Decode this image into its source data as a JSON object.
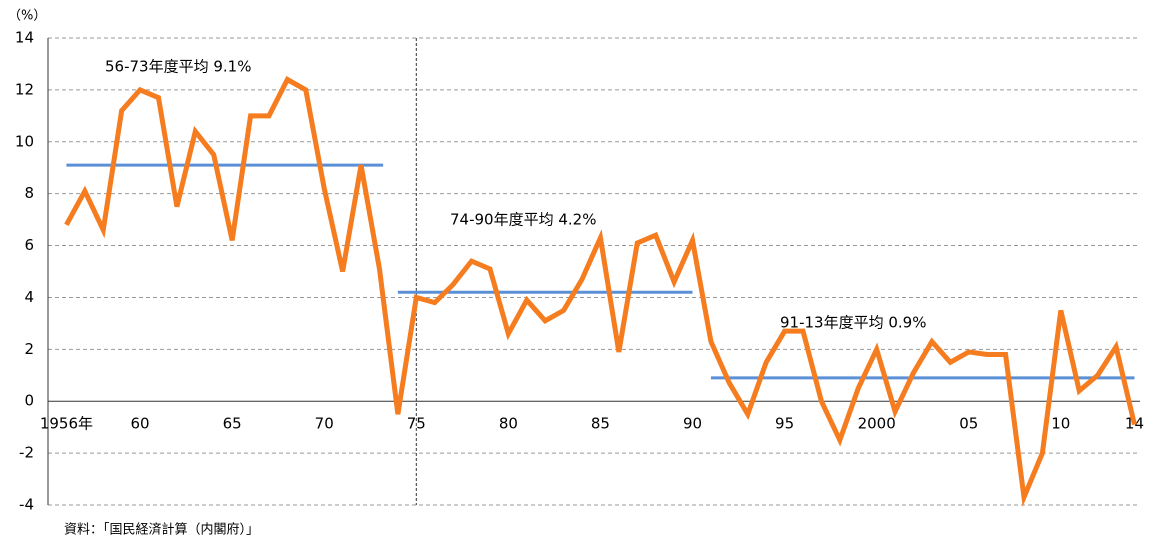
{
  "chart_data": {
    "type": "line",
    "y_unit": "（%）",
    "source": "資料：「国民経済計算（内閣府）」",
    "x": [
      1956,
      1957,
      1958,
      1959,
      1960,
      1961,
      1962,
      1963,
      1964,
      1965,
      1966,
      1967,
      1968,
      1969,
      1970,
      1971,
      1972,
      1973,
      1974,
      1975,
      1976,
      1977,
      1978,
      1979,
      1980,
      1981,
      1982,
      1983,
      1984,
      1985,
      1986,
      1987,
      1988,
      1989,
      1990,
      1991,
      1992,
      1993,
      1994,
      1995,
      1996,
      1997,
      1998,
      1999,
      2000,
      2001,
      2002,
      2003,
      2004,
      2005,
      2006,
      2007,
      2008,
      2009,
      2010,
      2011,
      2012,
      2013,
      2014
    ],
    "series": [
      {
        "color": "#f57c1f",
        "values": [
          6.8,
          8.1,
          6.6,
          11.2,
          12.0,
          11.7,
          7.5,
          10.4,
          9.5,
          6.2,
          11.0,
          11.0,
          12.4,
          12.0,
          8.2,
          5.0,
          9.1,
          5.1,
          -0.5,
          4.0,
          3.8,
          4.5,
          5.4,
          5.1,
          2.6,
          3.9,
          3.1,
          3.5,
          4.7,
          6.3,
          1.9,
          6.1,
          6.4,
          4.6,
          6.2,
          2.3,
          0.7,
          -0.5,
          1.5,
          2.7,
          2.7,
          0.0,
          -1.5,
          0.5,
          2.0,
          -0.4,
          1.1,
          2.3,
          1.5,
          1.9,
          1.8,
          1.8,
          -3.7,
          -2.0,
          3.5,
          0.4,
          1.0,
          2.1,
          -0.9
        ]
      }
    ],
    "averages": [
      {
        "label": "56-73年度平均 9.1%",
        "value": 9.1,
        "start": 1956,
        "end": 1973.2
      },
      {
        "label": "74-90年度平均 4.2%",
        "value": 4.2,
        "start": 1974,
        "end": 1990
      },
      {
        "label": "91-13年度平均 0.9%",
        "value": 0.9,
        "start": 1991,
        "end": 2014
      }
    ],
    "average_color": "#5b8fd6",
    "divider_x": 1975,
    "xlim": [
      1955,
      2014.3
    ],
    "xticks": [
      {
        "value": 1956,
        "label": "1956年"
      },
      {
        "value": 1960,
        "label": "60"
      },
      {
        "value": 1965,
        "label": "65"
      },
      {
        "value": 1970,
        "label": "70"
      },
      {
        "value": 1975,
        "label": "75"
      },
      {
        "value": 1980,
        "label": "80"
      },
      {
        "value": 1985,
        "label": "85"
      },
      {
        "value": 1990,
        "label": "90"
      },
      {
        "value": 1995,
        "label": "95"
      },
      {
        "value": 2000,
        "label": "2000"
      },
      {
        "value": 2005,
        "label": "05"
      },
      {
        "value": 2010,
        "label": "10"
      },
      {
        "value": 2014,
        "label": "14"
      }
    ],
    "ylim": [
      -4,
      14
    ],
    "yticks": [
      -4,
      -2,
      0,
      2,
      4,
      6,
      8,
      10,
      12,
      14
    ],
    "grid": true
  }
}
